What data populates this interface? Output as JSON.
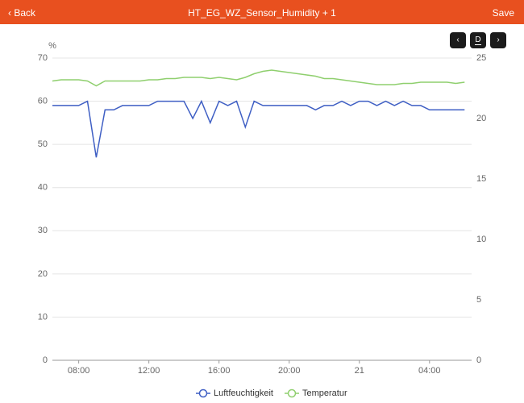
{
  "header": {
    "back": "Back",
    "title": "HT_EG_WZ_Sensor_Humidity + 1",
    "save": "Save"
  },
  "controls": {
    "period": "D"
  },
  "chart_data": {
    "type": "line",
    "y_unit": "%",
    "x": [
      6.5,
      7,
      7.5,
      8,
      8.5,
      9,
      9.5,
      10,
      10.5,
      11,
      11.5,
      12,
      12.5,
      13,
      13.5,
      14,
      14.5,
      15,
      15.5,
      16,
      16.5,
      17,
      17.5,
      18,
      18.5,
      19,
      19.5,
      20,
      20.5,
      21,
      21.5,
      22,
      22.5,
      23,
      23.5,
      24,
      24.5,
      25,
      25.5,
      26,
      26.5,
      27,
      27.5,
      28,
      28.5,
      29,
      29.5,
      30
    ],
    "xlim": [
      6.5,
      30.4
    ],
    "xticks": [
      {
        "value": 8,
        "label": "08:00"
      },
      {
        "value": 12,
        "label": "12:00"
      },
      {
        "value": 16,
        "label": "16:00"
      },
      {
        "value": 20,
        "label": "20:00"
      },
      {
        "value": 24,
        "label": "21"
      },
      {
        "value": 28,
        "label": "04:00"
      }
    ],
    "ylim": [
      0,
      70
    ],
    "yticks": [
      0,
      10,
      20,
      30,
      40,
      50,
      60,
      70
    ],
    "y2lim": [
      0,
      25
    ],
    "y2ticks": [
      0,
      5,
      10,
      15,
      20,
      25
    ],
    "grid": true,
    "series": [
      {
        "name": "Luftfeuchtigkeit",
        "color": "#3f5fc4",
        "values": [
          59,
          59,
          59,
          59,
          60,
          47,
          58,
          58,
          59,
          59,
          59,
          59,
          60,
          60,
          60,
          60,
          56,
          60,
          55,
          60,
          59,
          60,
          54,
          60,
          59,
          59,
          59,
          59,
          59,
          59,
          58,
          59,
          59,
          60,
          59,
          60,
          60,
          59,
          60,
          59,
          60,
          59,
          59,
          58,
          58,
          58,
          58,
          58
        ]
      },
      {
        "name": "Temperatur",
        "color": "#8fcf6e",
        "axis": "y2",
        "values": [
          23.1,
          23.2,
          23.2,
          23.2,
          23.1,
          22.7,
          23.1,
          23.1,
          23.1,
          23.1,
          23.1,
          23.2,
          23.2,
          23.3,
          23.3,
          23.4,
          23.4,
          23.4,
          23.3,
          23.4,
          23.3,
          23.2,
          23.4,
          23.7,
          23.9,
          24.0,
          23.9,
          23.8,
          23.7,
          23.6,
          23.5,
          23.3,
          23.3,
          23.2,
          23.1,
          23.0,
          22.9,
          22.8,
          22.8,
          22.8,
          22.9,
          22.9,
          23.0,
          23.0,
          23.0,
          23.0,
          22.9,
          23.0
        ]
      }
    ]
  }
}
